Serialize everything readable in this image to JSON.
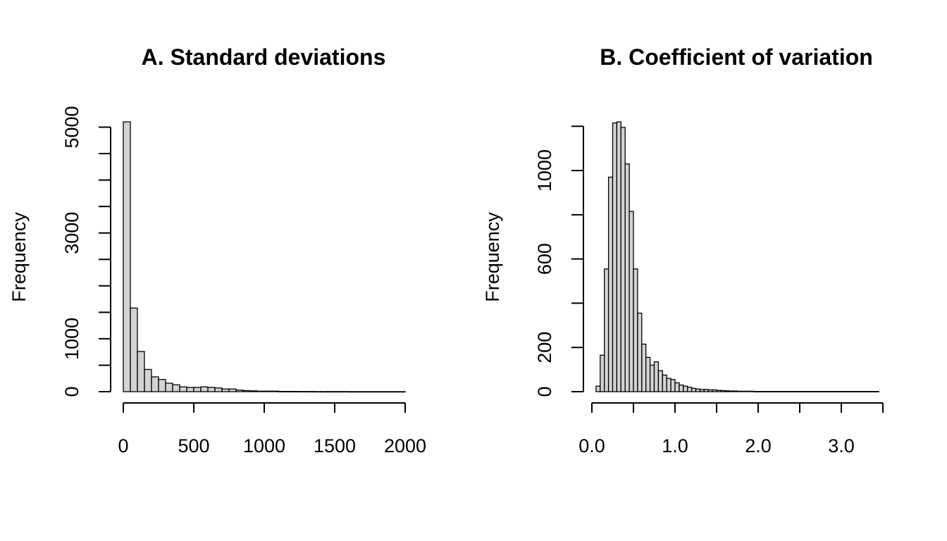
{
  "chart_data": [
    {
      "type": "bar",
      "title": "A. Standard deviations",
      "xlabel": "",
      "ylabel": "Frequency",
      "bin_width": 50,
      "bin_start": 0,
      "values": [
        5100,
        1580,
        760,
        420,
        280,
        230,
        160,
        130,
        90,
        80,
        80,
        90,
        80,
        70,
        50,
        50,
        30,
        20,
        15,
        10,
        10,
        10,
        5,
        5,
        4,
        3,
        3,
        2,
        2,
        2,
        2,
        2,
        1,
        1,
        1,
        1,
        1,
        1,
        1,
        1
      ],
      "xlim": [
        0,
        2000
      ],
      "ylim": [
        0,
        5100
      ],
      "x_ticks": [
        0,
        500,
        1000,
        1500,
        2000
      ],
      "x_tick_labels": [
        "0",
        "500",
        "1000",
        "1500",
        "2000"
      ],
      "y_ticks": [
        0,
        500,
        1000,
        1500,
        2000,
        2500,
        3000,
        3500,
        4000,
        4500,
        5000
      ],
      "y_tick_labels": [
        "0",
        "1000",
        "3000",
        "5000"
      ],
      "y_labeled_ticks": [
        0,
        1000,
        3000,
        5000
      ]
    },
    {
      "type": "bar",
      "title": "B. Coefficient of variation",
      "xlabel": "",
      "ylabel": "Frequency",
      "bin_width": 0.05,
      "bin_start": 0.05,
      "values": [
        25,
        165,
        555,
        970,
        1215,
        1220,
        1195,
        1030,
        815,
        555,
        355,
        215,
        155,
        120,
        135,
        95,
        75,
        60,
        55,
        40,
        30,
        25,
        20,
        15,
        12,
        10,
        10,
        8,
        8,
        6,
        5,
        4,
        3,
        3,
        2,
        2,
        2,
        2,
        1,
        1,
        1,
        1,
        1,
        1,
        1,
        1,
        1,
        1,
        1,
        1,
        1,
        1,
        1,
        1,
        1,
        1,
        1,
        1,
        1,
        1,
        1,
        1,
        1,
        1,
        1,
        1,
        1,
        1
      ],
      "xlim": [
        0,
        3.5
      ],
      "ylim": [
        0,
        1220
      ],
      "x_ticks": [
        0,
        0.5,
        1.0,
        1.5,
        2.0,
        2.5,
        3.0,
        3.5
      ],
      "x_tick_labels": [
        "0.0",
        "",
        "1.0",
        "",
        "2.0",
        "",
        "3.0",
        ""
      ],
      "y_ticks": [
        0,
        200,
        400,
        600,
        800,
        1000,
        1200
      ],
      "y_tick_labels": [
        "0",
        "200",
        "600",
        "1000"
      ],
      "y_labeled_ticks": [
        0,
        200,
        600,
        1000
      ]
    }
  ]
}
